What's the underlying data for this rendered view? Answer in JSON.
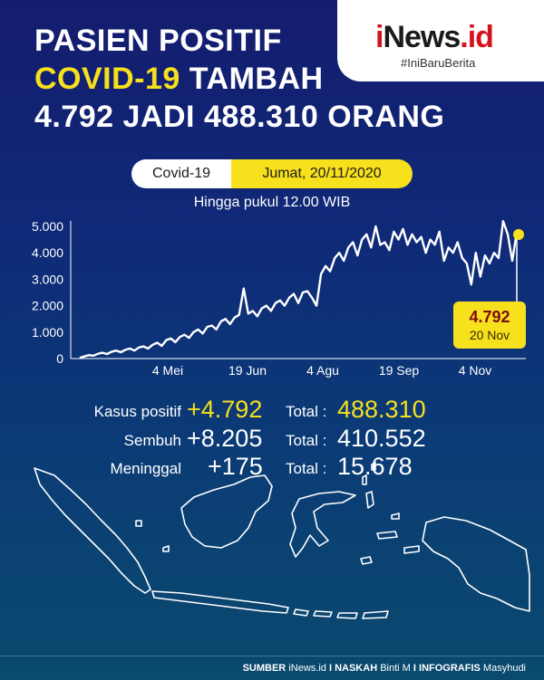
{
  "headline": {
    "line1": "PASIEN POSITIF",
    "line2_yellow": "COVID-19",
    "line2_white": " TAMBAH",
    "line3": "4.792 JADI 488.310 ORANG"
  },
  "brand": {
    "logo_i": "i",
    "logo_news": "News",
    "logo_id": ".id",
    "tagline": "#IniBaruBerita"
  },
  "date_pill": {
    "left": "Covid-19",
    "right": "Jumat, 20/11/2020"
  },
  "subtitle": "Hingga pukul 12.00 WIB",
  "chart_data": {
    "type": "line",
    "y_ticks": [
      "5.000",
      "4.000",
      "3.000",
      "2.000",
      "1.000",
      "0"
    ],
    "x_ticks": [
      "4 Mei",
      "19 Jun",
      "4 Agu",
      "19 Sep",
      "4 Nov"
    ],
    "ylim": [
      0,
      5000
    ],
    "series": [
      {
        "values": [
          30,
          80,
          130,
          110,
          180,
          220,
          170,
          260,
          300,
          240,
          330,
          380,
          300,
          420,
          460,
          380,
          520,
          600,
          480,
          700,
          760,
          620,
          820,
          900,
          780,
          1000,
          1100,
          950,
          1200,
          1250,
          1100,
          1400,
          1500,
          1300,
          1550,
          1650,
          2650,
          1700,
          1800,
          1600,
          1900,
          2000,
          1800,
          2100,
          2200,
          2000,
          2300,
          2450,
          2100,
          2500,
          2550,
          2300,
          2000,
          3200,
          3500,
          3300,
          3800,
          4000,
          3700,
          4200,
          4400,
          3900,
          4500,
          4700,
          4200,
          5000,
          4300,
          4400,
          4100,
          4800,
          4500,
          4900,
          4300,
          4700,
          4400,
          4600,
          4000,
          4500,
          4300,
          4800,
          3700,
          4200,
          4000,
          4400,
          3800,
          3600,
          2800,
          4000,
          3100,
          3900,
          3600,
          4000,
          3800,
          5200,
          4700,
          3700,
          4792
        ]
      }
    ],
    "callout": {
      "value": "4.792",
      "date": "20 Nov"
    }
  },
  "stats": [
    {
      "label": "Kasus positif",
      "increase": "+4.792",
      "total_label": "Total :",
      "total": "488.310",
      "highlight": true
    },
    {
      "label": "Sembuh",
      "increase": "+8.205",
      "total_label": "Total :",
      "total": "410.552",
      "highlight": false
    },
    {
      "label": "Meninggal",
      "increase": "+175",
      "total_label": "Total :",
      "total": "15.678",
      "highlight": false
    }
  ],
  "footer": {
    "sumber_label": "SUMBER",
    "sumber": "iNews.id",
    "naskah_label": "NASKAH",
    "naskah": "Binti M",
    "infografis_label": "INFOGRAFIS",
    "infografis": "Masyhudi",
    "sep": "I"
  },
  "colors": {
    "accent": "#f7e01c",
    "brand_red": "#d6121f",
    "bg_top": "#141c6e",
    "bg_bottom": "#0a4a6e"
  }
}
